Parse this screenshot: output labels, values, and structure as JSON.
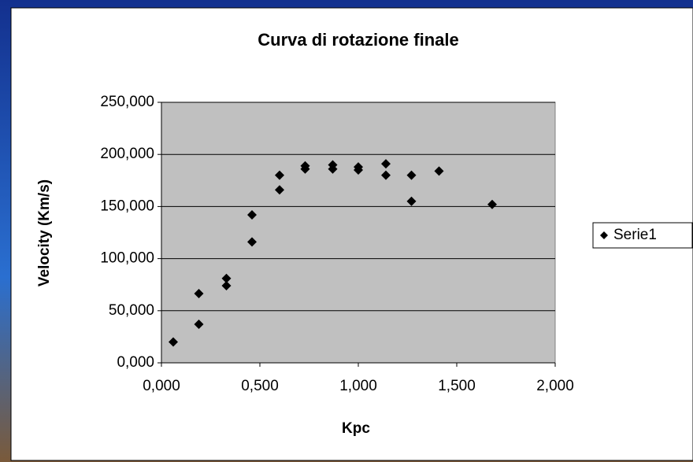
{
  "chart_data": {
    "type": "scatter",
    "title": "Curva di rotazione finale",
    "x_label": "Kpc",
    "y_label": "Velocity (Km/s)",
    "series": [
      {
        "name": "Serie1",
        "color": "#000000",
        "x": [
          0.06,
          0.19,
          0.19,
          0.33,
          0.33,
          0.46,
          0.46,
          0.6,
          0.6,
          0.73,
          0.73,
          0.87,
          0.87,
          1.0,
          1.0,
          1.14,
          1.14,
          1.27,
          1.27,
          1.41,
          1.68
        ],
        "values": [
          20000,
          37000,
          66500,
          74000,
          81000,
          116000,
          142000,
          166000,
          180000,
          186000,
          189000,
          190000,
          186000,
          188000,
          185000,
          191000,
          180000,
          180000,
          155000,
          184000,
          152000
        ]
      }
    ],
    "xlim": [
      0,
      2
    ],
    "ylim": [
      0,
      250000
    ],
    "xticks": [
      {
        "value": 0,
        "label": "0,000"
      },
      {
        "value": 0.5,
        "label": "0,500"
      },
      {
        "value": 1,
        "label": "1,000"
      },
      {
        "value": 1.5,
        "label": "1,500"
      },
      {
        "value": 2,
        "label": "2,000"
      }
    ],
    "yticks": [
      {
        "value": 0,
        "label": "0,000"
      },
      {
        "value": 50000,
        "label": "50,000"
      },
      {
        "value": 100000,
        "label": "100,000"
      },
      {
        "value": 150000,
        "label": "150,000"
      },
      {
        "value": 200000,
        "label": "200,000"
      },
      {
        "value": 250000,
        "label": "250,000"
      }
    ],
    "grid": true,
    "legend": "right"
  }
}
